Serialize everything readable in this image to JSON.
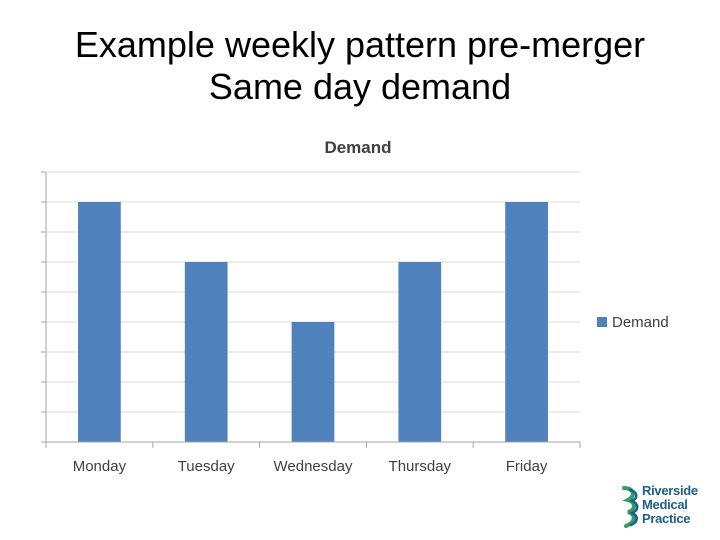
{
  "slide": {
    "title_line1": "Example weekly pattern pre-merger",
    "title_line2": "Same day demand"
  },
  "chart_data": {
    "type": "bar",
    "title": "Demand",
    "categories": [
      "Monday",
      "Tuesday",
      "Wednesday",
      "Thursday",
      "Friday"
    ],
    "series": [
      {
        "name": "Demand",
        "values": [
          8,
          6,
          4,
          6,
          8
        ],
        "color": "#4f81bd"
      }
    ],
    "ylim": [
      0,
      9
    ],
    "y_tick_labels_visible": false,
    "grid": true,
    "grid_color": "#d9d9d9",
    "legend": "right",
    "xlabel": "",
    "ylabel": ""
  },
  "logo": {
    "line1": "Riverside",
    "line2": "Medical",
    "line3": "Practice",
    "icon": "riverside-logo-icon",
    "colors": {
      "text": "#1f5f8b",
      "accent": "#2e9e6b"
    }
  }
}
